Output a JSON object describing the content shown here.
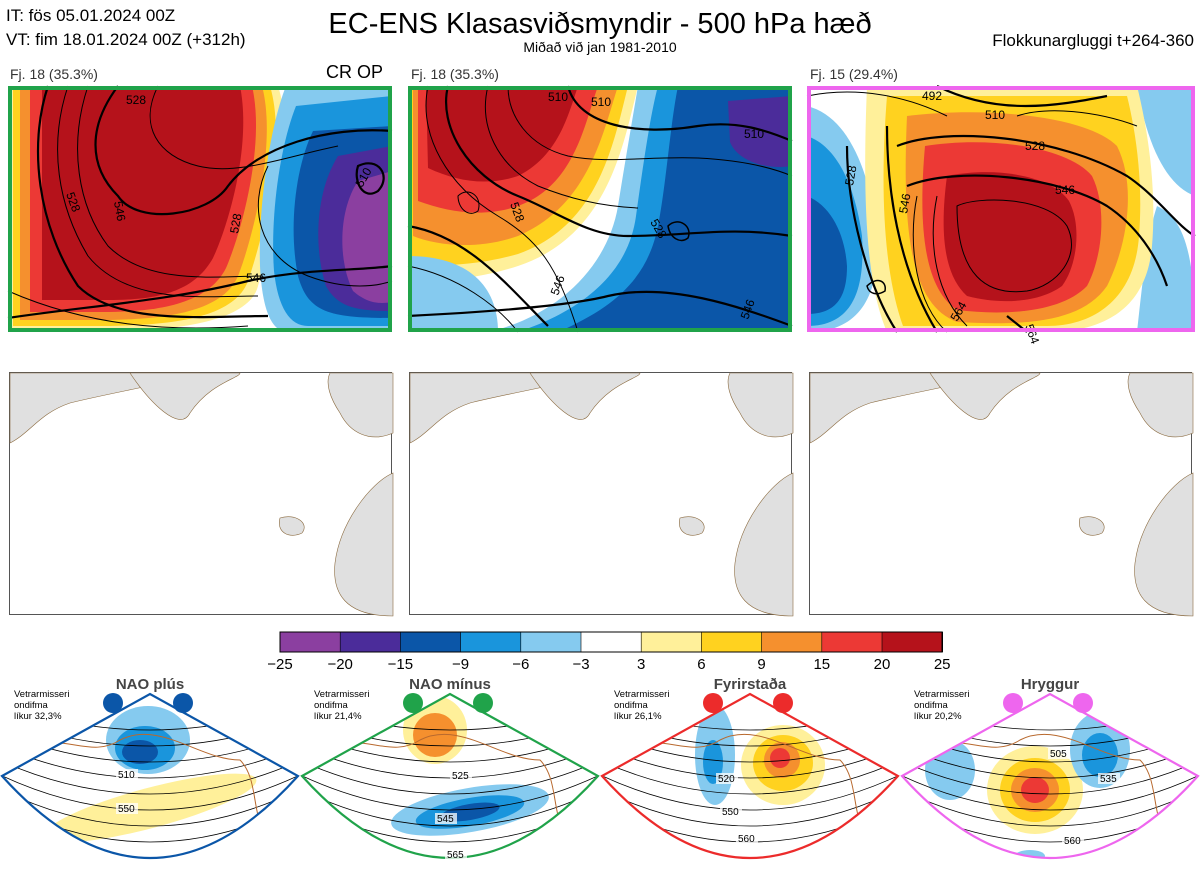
{
  "header": {
    "it": "IT: fös 05.01.2024 00Z",
    "vt": "VT: fim 18.01.2024 00Z  (+312h)",
    "title": "EC-ENS Klasasviðsmyndir - 500 hPa hæð",
    "subtitle": "Miðað við jan 1981-2010",
    "window": "Flokkunargluggi t+264-360"
  },
  "clusters": [
    {
      "label": "Fj. 18 (35.3%)",
      "border_color": "#20a34a",
      "contour_labels": [
        "528",
        "528",
        "546",
        "528",
        "546",
        "510"
      ]
    },
    {
      "label": "Fj. 18 (35.3%)",
      "border_color": "#20a34a",
      "contour_labels": [
        "510",
        "510",
        "510",
        "528",
        "528",
        "546",
        "546"
      ]
    },
    {
      "label": "Fj. 15 (29.4%)",
      "border_color": "#ee66ee",
      "contour_labels": [
        "492",
        "510",
        "528",
        "546",
        "528",
        "546",
        "564",
        "564"
      ]
    }
  ],
  "op_marker": "CR OP",
  "colorbar": {
    "ticks": [
      "−25",
      "−20",
      "−15",
      "−9",
      "−6",
      "−3",
      "3",
      "6",
      "9",
      "15",
      "20",
      "25"
    ],
    "colors": [
      "#8b3fa0",
      "#4b2c9a",
      "#0b56a8",
      "#1a95dc",
      "#85caef",
      "#ffffff",
      "#fff09a",
      "#ffd21f",
      "#f5902e",
      "#ec3935",
      "#b5121b"
    ]
  },
  "regimes": [
    {
      "name": "NAO plús",
      "note": "Vetrarmisseri\nondifma\nlíkur 32,3%",
      "color": "#0b56a8",
      "contour_labels": [
        "510",
        "550"
      ]
    },
    {
      "name": "NAO mínus",
      "note": "Vetrarmisseri\nondifma\nlíkur 21,4%",
      "color": "#20a34a",
      "contour_labels": [
        "525",
        "545",
        "565"
      ]
    },
    {
      "name": "Fyrirstaða",
      "note": "Vetrarmisseri\nondifma\nlíkur 26,1%",
      "color": "#ec2b2b",
      "contour_labels": [
        "520",
        "550",
        "560"
      ]
    },
    {
      "name": "Hryggur",
      "note": "Vetrarmisseri\nondifma\nlíkur 20,2%",
      "color": "#ee66ee",
      "contour_labels": [
        "505",
        "535",
        "560"
      ]
    }
  ]
}
